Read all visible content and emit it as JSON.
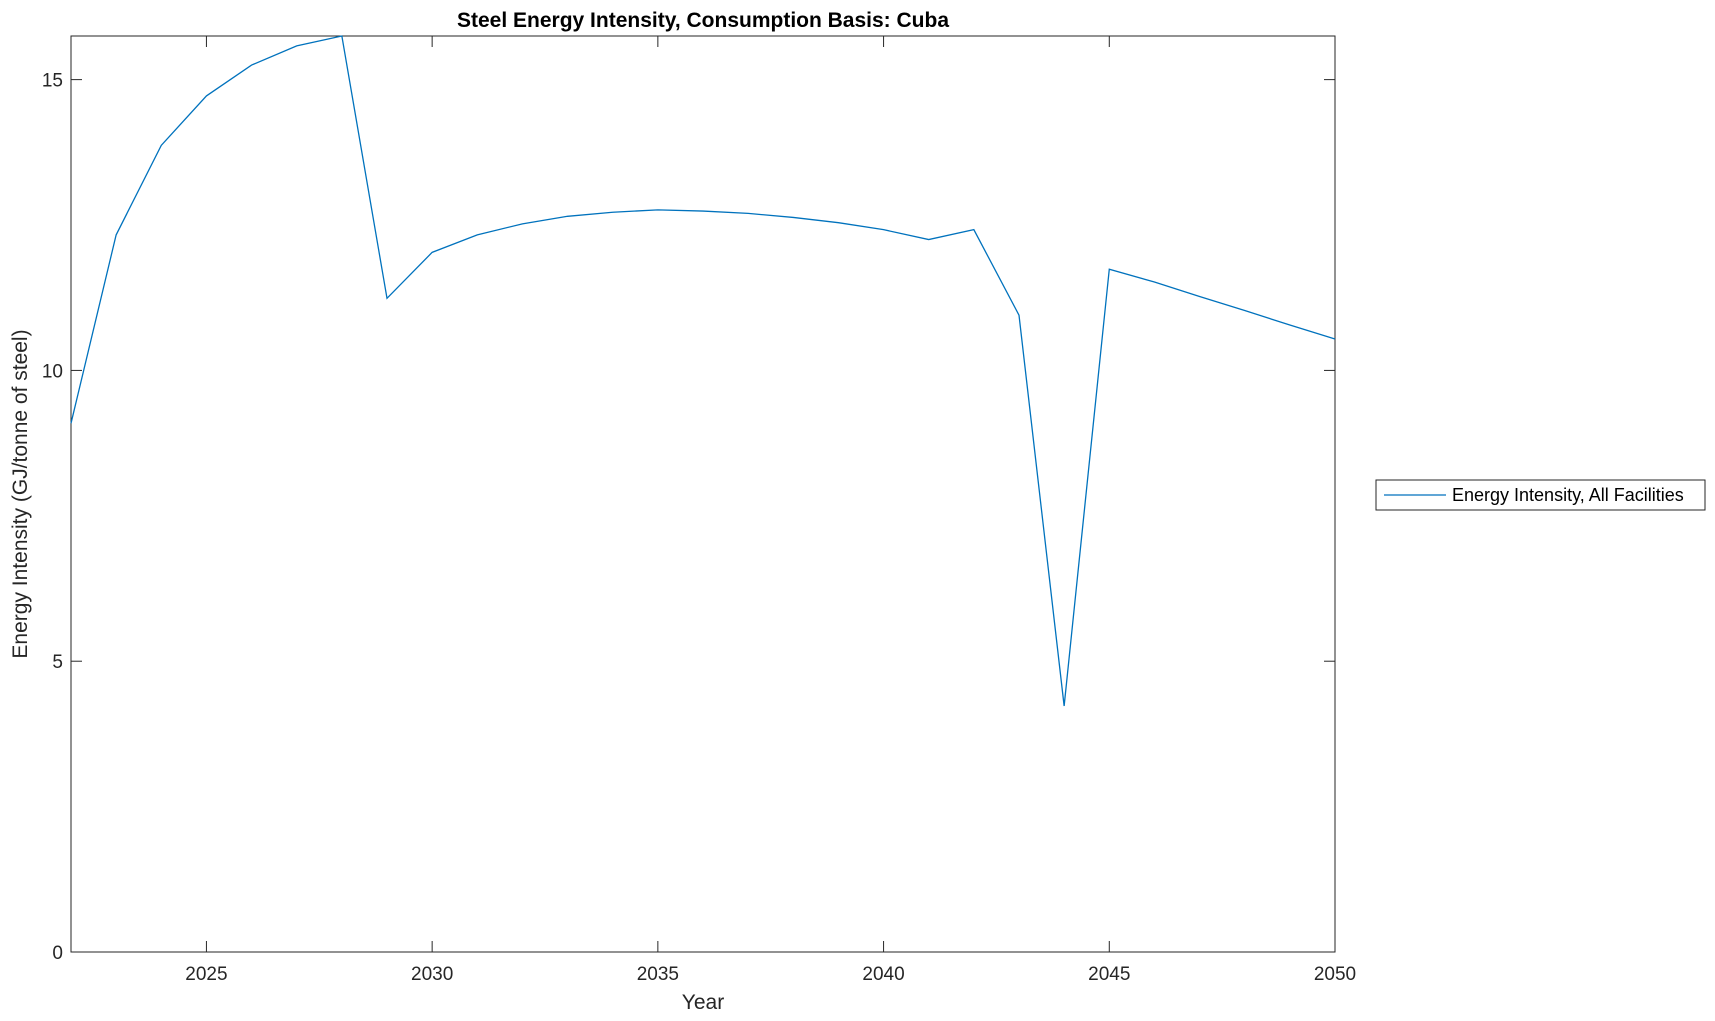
{
  "chart_data": {
    "type": "line",
    "title": "Steel Energy Intensity, Consumption Basis: Cuba",
    "xlabel": "Year",
    "ylabel": "Energy Intensity (GJ/tonne of steel)",
    "xlim": [
      2022,
      2050
    ],
    "ylim": [
      0,
      15.75
    ],
    "xticks": [
      2025,
      2030,
      2035,
      2040,
      2045,
      2050
    ],
    "yticks": [
      0,
      5,
      10,
      15
    ],
    "grid": false,
    "legend_placement": "outside-right",
    "x": [
      2022,
      2023,
      2024,
      2025,
      2026,
      2027,
      2028,
      2029,
      2030,
      2031,
      2032,
      2033,
      2034,
      2035,
      2036,
      2037,
      2038,
      2039,
      2040,
      2041,
      2042,
      2043,
      2044,
      2045,
      2046,
      2047,
      2048,
      2049,
      2050
    ],
    "series": [
      {
        "name": "Energy Intensity, All Facilities",
        "color": "#0072BD",
        "values": [
          9.09,
          12.33,
          13.87,
          14.72,
          15.25,
          15.58,
          15.75,
          11.24,
          12.03,
          12.33,
          12.52,
          12.65,
          12.72,
          12.76,
          12.74,
          12.7,
          12.63,
          12.54,
          12.42,
          12.25,
          12.42,
          10.95,
          4.23,
          11.74,
          11.52,
          11.27,
          11.03,
          10.78,
          10.54
        ]
      }
    ]
  }
}
